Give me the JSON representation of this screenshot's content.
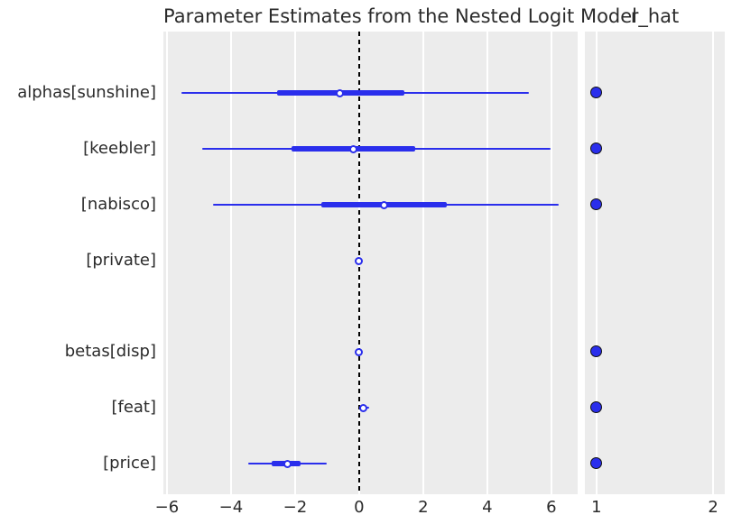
{
  "title": {
    "main": "Parameter Estimates from the Nested Logit Model",
    "right": "r_hat"
  },
  "colors": {
    "figure_bg": "#ffffff",
    "panel_bg": "#ececec",
    "gridline": "#ffffff",
    "series_blue": "#2a2eec",
    "zero_line": "#000000",
    "marker_fill": "#ffffff",
    "dot_edge": "#111111",
    "text": "#2b2b2b"
  },
  "chart_data": {
    "type": "forest",
    "title": "Parameter Estimates from the Nested Logit Model",
    "legend": "none",
    "grid": "white vertical gridlines on gray panel background",
    "panels": [
      {
        "name": "estimates",
        "xlabel": "",
        "xlim": [
          -6.11,
          6.82
        ],
        "xticks": [
          -6,
          -4,
          -2,
          0,
          2,
          4,
          6
        ],
        "reference_line": {
          "x": 0,
          "style": "dashed",
          "color": "#000000"
        }
      },
      {
        "name": "r_hat",
        "title": "r_hat",
        "xlabel": "",
        "xlim": [
          0.9,
          2.1
        ],
        "xticks": [
          1,
          2
        ]
      }
    ],
    "rows": [
      {
        "label": "alphas[sunshine]",
        "group": "alphas",
        "hdi": [
          -5.55,
          5.3
        ],
        "iqr": [
          -2.55,
          1.4
        ],
        "median": -0.6,
        "r_hat": 1.0
      },
      {
        "label": "[keebler]",
        "group": "alphas",
        "hdi": [
          -4.9,
          5.97
        ],
        "iqr": [
          -2.1,
          1.75
        ],
        "median": -0.17,
        "r_hat": 1.0
      },
      {
        "label": "[nabisco]",
        "group": "alphas",
        "hdi": [
          -4.55,
          6.23
        ],
        "iqr": [
          -1.18,
          2.73
        ],
        "median": 0.79,
        "r_hat": 1.0
      },
      {
        "label": "[private]",
        "group": "alphas",
        "hdi": [
          -0.06,
          0.06
        ],
        "iqr": [
          -0.03,
          0.02
        ],
        "median": -0.02,
        "r_hat": null
      },
      {
        "label": "betas[disp]",
        "group": "betas",
        "hdi": [
          -0.05,
          0.06
        ],
        "iqr": [
          -0.02,
          0.02
        ],
        "median": 0.0,
        "r_hat": 1.0
      },
      {
        "label": "[feat]",
        "group": "betas",
        "hdi": [
          0.0,
          0.3
        ],
        "iqr": [
          0.06,
          0.2
        ],
        "median": 0.13,
        "r_hat": 1.0
      },
      {
        "label": "[price]",
        "group": "betas",
        "hdi": [
          -3.46,
          -1.01
        ],
        "iqr": [
          -2.73,
          -1.83
        ],
        "median": -2.23,
        "r_hat": 1.0
      }
    ]
  }
}
